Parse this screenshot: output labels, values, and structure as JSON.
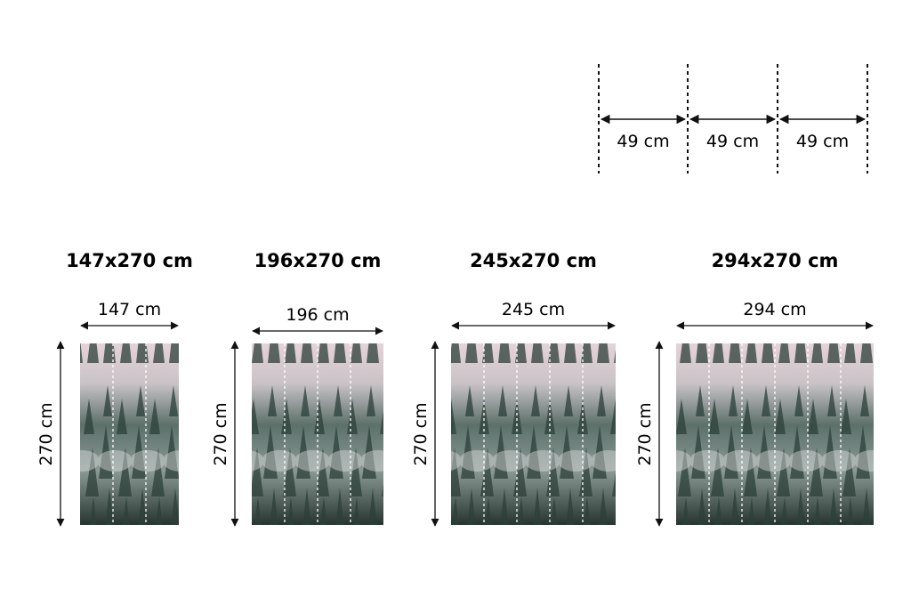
{
  "strip_guide": {
    "labels": [
      "49 cm",
      "49 cm",
      "49 cm"
    ]
  },
  "variants": [
    {
      "title": "147x270 cm",
      "width_label": "147 cm",
      "height_label": "270 cm",
      "strips": 3
    },
    {
      "title": "196x270 cm",
      "width_label": "196 cm",
      "height_label": "270 cm",
      "strips": 4
    },
    {
      "title": "245x270 cm",
      "width_label": "245 cm",
      "height_label": "270 cm",
      "strips": 5
    },
    {
      "title": "294x270 cm",
      "width_label": "294 cm",
      "height_label": "270 cm",
      "strips": 6
    }
  ],
  "image": {
    "subject": "misty pine forest",
    "top_color": "#e6d3da",
    "bottom_color": "#26352f"
  }
}
